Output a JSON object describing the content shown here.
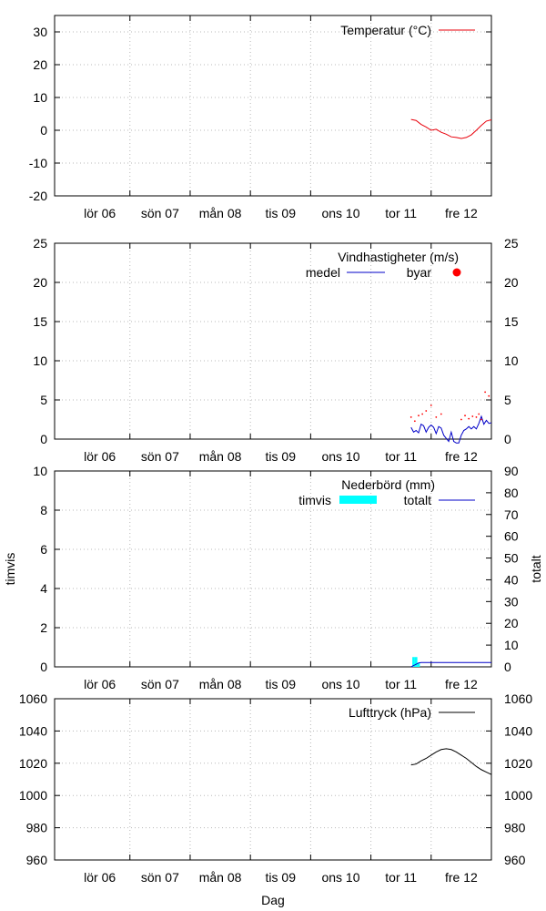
{
  "colors": {
    "temperature": "#e8000b",
    "wind_mean": "#0000c8",
    "gust": "#ff0000",
    "hourly": "#00ffff",
    "total": "#0000c8",
    "pressure": "#000000"
  },
  "chart_data": [
    {
      "type": "line",
      "id": "temp",
      "x_labels": [
        "lör 06",
        "sön 07",
        "mån 08",
        "tis 09",
        "ons 10",
        "tor 11",
        "fre 12"
      ],
      "xlim_hours": [
        0,
        174
      ],
      "ylim": [
        -20,
        35
      ],
      "yticks": [
        -20,
        -10,
        0,
        10,
        20,
        30
      ],
      "grid": true,
      "legend_position": "top-right",
      "series": [
        {
          "name": "Temperatur (°C)",
          "x_hours": [
            142,
            144,
            146,
            148,
            150,
            152,
            154,
            156,
            158,
            160,
            162,
            164,
            166,
            168,
            170,
            172,
            174
          ],
          "values": [
            3.3,
            3.0,
            1.8,
            1.0,
            0.0,
            0.3,
            -0.6,
            -1.2,
            -2.0,
            -2.2,
            -2.5,
            -2.2,
            -1.4,
            0.0,
            1.5,
            2.8,
            3.2
          ]
        }
      ]
    },
    {
      "type": "line",
      "id": "wind",
      "title": "Vindhastigheter (m/s)",
      "x_labels": [
        "lör 06",
        "sön 07",
        "mån 08",
        "tis 09",
        "ons 10",
        "tor 11",
        "fre 12"
      ],
      "xlim_hours": [
        0,
        174
      ],
      "ylim": [
        0,
        25
      ],
      "yticks": [
        0,
        5,
        10,
        15,
        20,
        25
      ],
      "grid": true,
      "legend_position": "top-right",
      "series": [
        {
          "name": "medel",
          "style": "line",
          "x_hours": [
            142,
            143,
            144,
            145,
            146,
            147,
            148,
            149,
            150,
            151,
            152,
            153,
            154,
            155,
            156,
            157,
            158,
            159,
            160,
            161,
            162,
            163,
            164,
            165,
            166,
            167,
            168,
            169,
            170,
            171,
            172,
            173,
            174
          ],
          "values": [
            1.5,
            0.9,
            1.1,
            0.8,
            1.9,
            1.7,
            0.9,
            1.5,
            1.8,
            1.5,
            0.7,
            1.6,
            1.4,
            0.5,
            0.1,
            -0.3,
            0.9,
            -0.3,
            -0.5,
            -0.5,
            0.5,
            1.1,
            1.3,
            1.6,
            1.3,
            1.6,
            1.3,
            2.0,
            2.9,
            1.9,
            2.4,
            2.0,
            2.1
          ]
        },
        {
          "name": "byar",
          "style": "points",
          "x_hours": [
            142,
            143.5,
            145,
            146.5,
            148,
            150,
            152,
            154,
            162,
            163.5,
            165,
            166.5,
            168,
            169,
            170,
            171.5,
            173
          ],
          "values": [
            2.8,
            2.3,
            3.0,
            3.2,
            3.6,
            4.3,
            2.8,
            3.2,
            2.5,
            3.0,
            2.6,
            2.9,
            2.8,
            3.2,
            2.5,
            6.0,
            5.5
          ]
        }
      ]
    },
    {
      "type": "bar",
      "id": "precip",
      "title": "Nederbörd (mm)",
      "ylabel": "timvis",
      "y2label": "totalt",
      "x_labels": [
        "lör 06",
        "sön 07",
        "mån 08",
        "tis 09",
        "ons 10",
        "tor 11",
        "fre 12"
      ],
      "xlim_hours": [
        0,
        174
      ],
      "ylim": [
        0,
        10
      ],
      "yticks": [
        0,
        2,
        4,
        6,
        8,
        10
      ],
      "y2lim": [
        0,
        90
      ],
      "y2ticks": [
        0,
        10,
        20,
        30,
        40,
        50,
        60,
        70,
        80,
        90
      ],
      "grid": true,
      "legend_position": "top-right",
      "series": [
        {
          "name": "timvis",
          "style": "bars",
          "x_hours": [
            143,
            144,
            145
          ],
          "values": [
            0.5,
            0.5,
            0.2
          ]
        },
        {
          "name": "totalt",
          "style": "line",
          "x_hours": [
            142,
            143,
            144,
            145,
            146,
            174
          ],
          "values": [
            0.0,
            0.6,
            1.2,
            1.8,
            2.0,
            2.0
          ]
        }
      ]
    },
    {
      "type": "line",
      "id": "pressure",
      "xlabel": "Dag",
      "x_labels": [
        "lör 06",
        "sön 07",
        "mån 08",
        "tis 09",
        "ons 10",
        "tor 11",
        "fre 12"
      ],
      "xlim_hours": [
        0,
        174
      ],
      "ylim": [
        960,
        1060
      ],
      "yticks": [
        960,
        980,
        1000,
        1020,
        1040,
        1060
      ],
      "grid": true,
      "legend_position": "top-right",
      "series": [
        {
          "name": "Lufttryck (hPa)",
          "x_hours": [
            142,
            144,
            146,
            148,
            150,
            152,
            154,
            156,
            158,
            160,
            162,
            164,
            166,
            168,
            170,
            172,
            174
          ],
          "values": [
            1019,
            1019.5,
            1021.5,
            1023,
            1025,
            1027,
            1028.5,
            1029,
            1028.5,
            1027,
            1025,
            1023,
            1020.5,
            1018,
            1016,
            1014.5,
            1013
          ]
        }
      ]
    }
  ]
}
